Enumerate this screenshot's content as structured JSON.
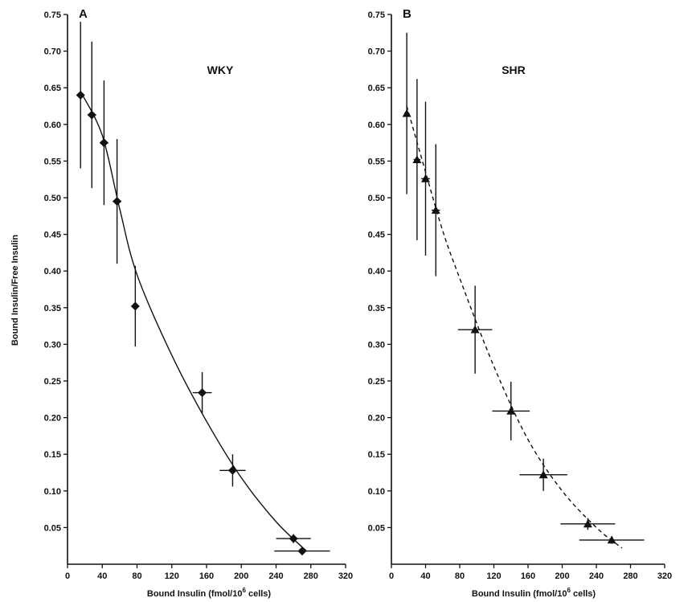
{
  "figure": {
    "ylabel": "Bound Insulin/Free Insulin",
    "xlabel_a": "Bound Insulin (fmol/10",
    "xlabel_b": "Bound Insulin (fmol/10",
    "xlabel_sup": "6",
    "xlabel_tail": " cells)",
    "colors": {
      "ink": "#111111"
    }
  },
  "chart_data": [
    {
      "type": "scatter",
      "panel": "A",
      "group_label": "WKY",
      "xlim": [
        0,
        320
      ],
      "ylim": [
        0,
        0.75
      ],
      "xticks": [
        0,
        40,
        80,
        120,
        160,
        200,
        240,
        280,
        320
      ],
      "yticks": [
        0.05,
        0.1,
        0.15,
        0.2,
        0.25,
        0.3,
        0.35,
        0.4,
        0.45,
        0.5,
        0.55,
        0.6,
        0.65,
        0.7,
        0.75
      ],
      "marker": "diamond",
      "fit_line": "solid",
      "points": [
        {
          "x": 15,
          "y": 0.64,
          "xerr": 3,
          "yerr": 0.1
        },
        {
          "x": 28,
          "y": 0.613,
          "xerr": 5,
          "yerr": 0.1
        },
        {
          "x": 42,
          "y": 0.575,
          "xerr": 5,
          "yerr": 0.085
        },
        {
          "x": 57,
          "y": 0.495,
          "xerr": 5,
          "yerr": 0.085
        },
        {
          "x": 78,
          "y": 0.352,
          "xerr": 4,
          "yerr": 0.055
        },
        {
          "x": 155,
          "y": 0.234,
          "xerr": 11,
          "yerr": 0.028
        },
        {
          "x": 190,
          "y": 0.128,
          "xerr": 15,
          "yerr": 0.022
        },
        {
          "x": 260,
          "y": 0.035,
          "xerr": 20,
          "yerr": 0.006
        },
        {
          "x": 270,
          "y": 0.018,
          "xerr": 32,
          "yerr": 0.005
        }
      ],
      "fit": [
        [
          15,
          0.645
        ],
        [
          40,
          0.585
        ],
        [
          60,
          0.485
        ],
        [
          80,
          0.395
        ],
        [
          120,
          0.285
        ],
        [
          160,
          0.195
        ],
        [
          200,
          0.118
        ],
        [
          240,
          0.058
        ],
        [
          275,
          0.018
        ]
      ]
    },
    {
      "type": "scatter",
      "panel": "B",
      "group_label": "SHR",
      "xlim": [
        0,
        320
      ],
      "ylim": [
        0,
        0.75
      ],
      "xticks": [
        0,
        40,
        80,
        120,
        160,
        200,
        240,
        280,
        320
      ],
      "yticks": [
        0.05,
        0.1,
        0.15,
        0.2,
        0.25,
        0.3,
        0.35,
        0.4,
        0.45,
        0.5,
        0.55,
        0.6,
        0.65,
        0.7,
        0.75
      ],
      "marker": "triangle",
      "fit_line": "dashed",
      "points": [
        {
          "x": 18,
          "y": 0.615,
          "xerr": 3,
          "yerr": 0.11
        },
        {
          "x": 30,
          "y": 0.552,
          "xerr": 4,
          "yerr": 0.11
        },
        {
          "x": 40,
          "y": 0.526,
          "xerr": 5,
          "yerr": 0.105
        },
        {
          "x": 52,
          "y": 0.483,
          "xerr": 5,
          "yerr": 0.09
        },
        {
          "x": 98,
          "y": 0.32,
          "xerr": 20,
          "yerr": 0.06
        },
        {
          "x": 140,
          "y": 0.209,
          "xerr": 22,
          "yerr": 0.04
        },
        {
          "x": 178,
          "y": 0.122,
          "xerr": 28,
          "yerr": 0.022
        },
        {
          "x": 230,
          "y": 0.055,
          "xerr": 32,
          "yerr": 0.008
        },
        {
          "x": 258,
          "y": 0.033,
          "xerr": 38,
          "yerr": 0.005
        }
      ],
      "fit": [
        [
          18,
          0.625
        ],
        [
          40,
          0.535
        ],
        [
          60,
          0.455
        ],
        [
          80,
          0.39
        ],
        [
          120,
          0.27
        ],
        [
          160,
          0.17
        ],
        [
          200,
          0.1
        ],
        [
          240,
          0.05
        ],
        [
          270,
          0.022
        ]
      ]
    }
  ]
}
